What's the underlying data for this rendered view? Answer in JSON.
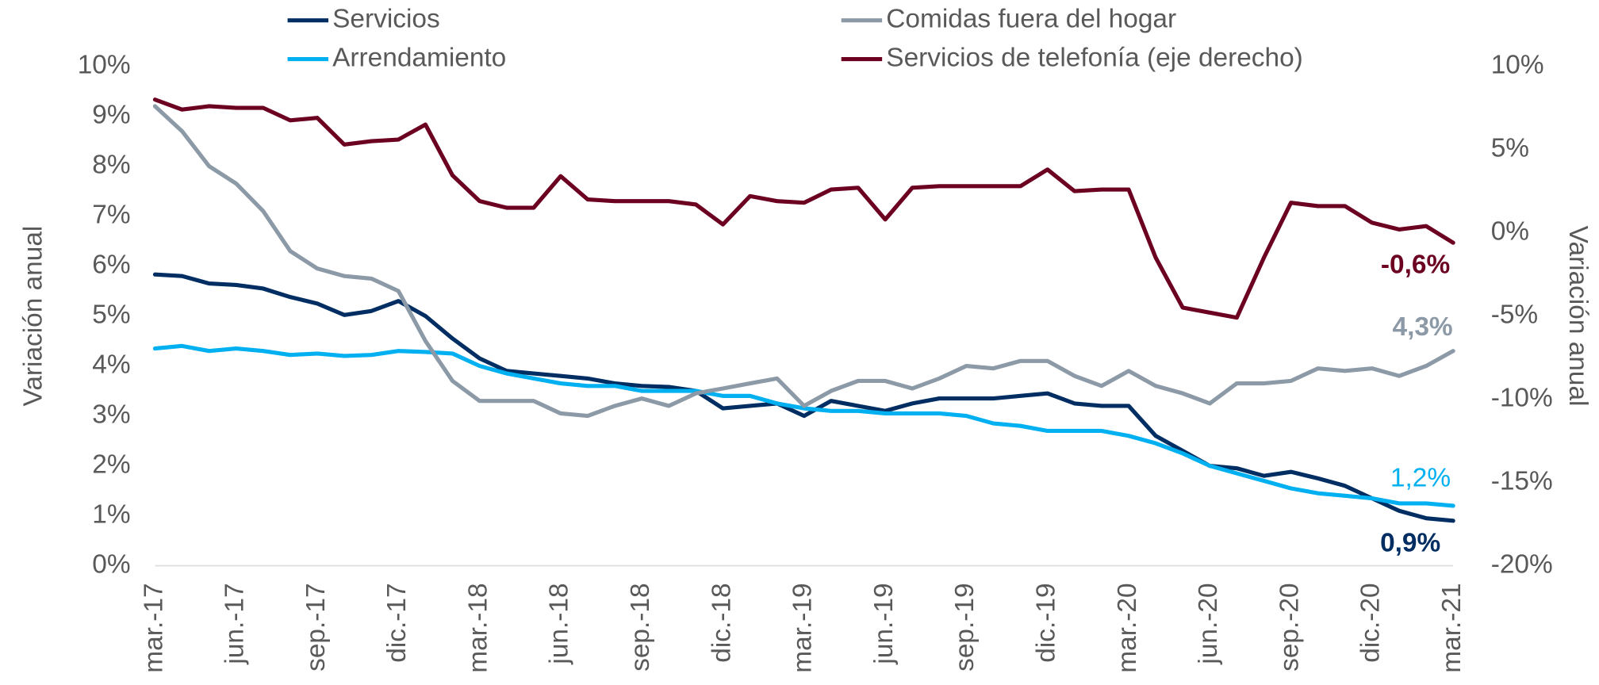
{
  "chart_data": {
    "type": "line",
    "y_label": "Variación anual",
    "y2_label": "Variación anual",
    "categories": [
      "mar.-17",
      null,
      null,
      "jun.-17",
      null,
      null,
      "sep.-17",
      null,
      null,
      "dic.-17",
      null,
      null,
      "mar.-18",
      null,
      null,
      "jun.-18",
      null,
      null,
      "sep.-18",
      null,
      null,
      "dic.-18",
      null,
      null,
      "mar.-19",
      null,
      null,
      "jun.-19",
      null,
      null,
      "sep.-19",
      null,
      null,
      "dic.-19",
      null,
      null,
      "mar.-20",
      null,
      null,
      "jun.-20",
      null,
      null,
      "sep.-20",
      null,
      null,
      "dic.-20",
      null,
      null,
      "mar.-21"
    ],
    "ylim": [
      0,
      10
    ],
    "yticks": [
      {
        "value": 0,
        "label": "0%"
      },
      {
        "value": 1,
        "label": "1%"
      },
      {
        "value": 2,
        "label": "2%"
      },
      {
        "value": 3,
        "label": "3%"
      },
      {
        "value": 4,
        "label": "4%"
      },
      {
        "value": 5,
        "label": "5%"
      },
      {
        "value": 6,
        "label": "6%"
      },
      {
        "value": 7,
        "label": "7%"
      },
      {
        "value": 8,
        "label": "8%"
      },
      {
        "value": 9,
        "label": "9%"
      },
      {
        "value": 10,
        "label": "10%"
      }
    ],
    "y2lim": [
      -20,
      10
    ],
    "y2ticks": [
      {
        "value": -20,
        "label": "-20%"
      },
      {
        "value": -15,
        "label": "-15%"
      },
      {
        "value": -10,
        "label": "-10%"
      },
      {
        "value": -5,
        "label": "-5%"
      },
      {
        "value": 0,
        "label": "0%"
      },
      {
        "value": 5,
        "label": "5%"
      },
      {
        "value": 10,
        "label": "10%"
      }
    ],
    "series": [
      {
        "name": "Servicios",
        "color": "#002d62",
        "values": [
          5.83,
          5.8,
          5.65,
          5.62,
          5.55,
          5.38,
          5.25,
          5.02,
          5.1,
          5.3,
          5.0,
          4.55,
          4.15,
          3.9,
          3.85,
          3.8,
          3.75,
          3.65,
          3.6,
          3.58,
          3.5,
          3.15,
          3.2,
          3.25,
          3.0,
          3.3,
          3.2,
          3.1,
          3.25,
          3.35,
          3.35,
          3.35,
          3.4,
          3.45,
          3.25,
          3.2,
          3.2,
          2.6,
          2.3,
          2.0,
          1.95,
          1.8,
          1.88,
          1.75,
          1.6,
          1.35,
          1.1,
          0.95,
          0.9
        ],
        "value_labels": [
          null,
          null,
          null,
          null,
          null,
          null,
          null,
          null,
          null,
          null,
          null,
          null,
          null,
          null,
          null,
          null,
          null,
          null,
          null,
          null,
          null,
          null,
          null,
          null,
          null,
          null,
          null,
          null,
          null,
          null,
          null,
          null,
          null,
          null,
          null,
          null,
          null,
          null,
          null,
          null,
          null,
          null,
          null,
          null,
          null,
          null,
          null,
          null,
          "0,9%"
        ]
      },
      {
        "name": "Arrendamiento",
        "color": "#00b0f0",
        "values": [
          4.35,
          4.4,
          4.3,
          4.35,
          4.3,
          4.22,
          4.25,
          4.2,
          4.22,
          4.3,
          4.28,
          4.25,
          4.0,
          3.85,
          3.75,
          3.65,
          3.6,
          3.6,
          3.5,
          3.5,
          3.5,
          3.4,
          3.4,
          3.25,
          3.15,
          3.1,
          3.1,
          3.05,
          3.05,
          3.05,
          3.0,
          2.85,
          2.8,
          2.7,
          2.7,
          2.7,
          2.6,
          2.45,
          2.25,
          2.0,
          1.85,
          1.7,
          1.55,
          1.45,
          1.4,
          1.35,
          1.25,
          1.25,
          1.2
        ],
        "value_labels": [
          null,
          null,
          null,
          null,
          null,
          null,
          null,
          null,
          null,
          null,
          null,
          null,
          null,
          null,
          null,
          null,
          null,
          null,
          null,
          null,
          null,
          null,
          null,
          null,
          null,
          null,
          null,
          null,
          null,
          null,
          null,
          null,
          null,
          null,
          null,
          null,
          null,
          null,
          null,
          null,
          null,
          null,
          null,
          null,
          null,
          null,
          null,
          null,
          "1,2%"
        ]
      },
      {
        "name": "Comidas fuera del hogar",
        "color": "#8c99a6",
        "values": [
          9.2,
          8.7,
          8.0,
          7.65,
          7.1,
          6.3,
          5.95,
          5.8,
          5.75,
          5.5,
          4.5,
          3.7,
          3.3,
          3.3,
          3.3,
          3.05,
          3.0,
          3.2,
          3.35,
          3.2,
          3.45,
          3.55,
          3.65,
          3.75,
          3.2,
          3.5,
          3.7,
          3.7,
          3.55,
          3.75,
          4.0,
          3.95,
          4.1,
          4.1,
          3.8,
          3.6,
          3.9,
          3.6,
          3.45,
          3.25,
          3.65,
          3.65,
          3.7,
          3.95,
          3.9,
          3.95,
          3.8,
          4.0,
          4.3
        ],
        "value_labels": [
          null,
          null,
          null,
          null,
          null,
          null,
          null,
          null,
          null,
          null,
          null,
          null,
          null,
          null,
          null,
          null,
          null,
          null,
          null,
          null,
          null,
          null,
          null,
          null,
          null,
          null,
          null,
          null,
          null,
          null,
          null,
          null,
          null,
          null,
          null,
          null,
          null,
          null,
          null,
          null,
          null,
          null,
          null,
          null,
          null,
          null,
          null,
          null,
          "4,3%"
        ]
      },
      {
        "name": "Servicios de telefonía (eje derecho)",
        "color": "#6b0020",
        "axis": "y2",
        "values": [
          8.0,
          7.4,
          7.6,
          7.5,
          7.5,
          6.75,
          6.9,
          5.3,
          5.5,
          5.6,
          6.5,
          3.45,
          1.9,
          1.5,
          1.5,
          3.4,
          2.0,
          1.9,
          1.9,
          1.9,
          1.7,
          0.5,
          2.2,
          1.9,
          1.8,
          2.6,
          2.7,
          0.8,
          2.7,
          2.8,
          2.8,
          2.8,
          2.8,
          3.8,
          2.5,
          2.6,
          2.6,
          -1.5,
          -4.5,
          -4.8,
          -5.1,
          -1.5,
          1.8,
          1.6,
          1.6,
          0.6,
          0.2,
          0.4,
          -0.6
        ],
        "value_labels": [
          null,
          null,
          null,
          null,
          null,
          null,
          null,
          null,
          null,
          null,
          null,
          null,
          null,
          null,
          null,
          null,
          null,
          null,
          null,
          null,
          null,
          null,
          null,
          null,
          null,
          null,
          null,
          null,
          null,
          null,
          null,
          null,
          null,
          null,
          null,
          null,
          null,
          null,
          null,
          null,
          null,
          null,
          null,
          null,
          null,
          null,
          null,
          null,
          "-0,6%"
        ]
      }
    ]
  }
}
